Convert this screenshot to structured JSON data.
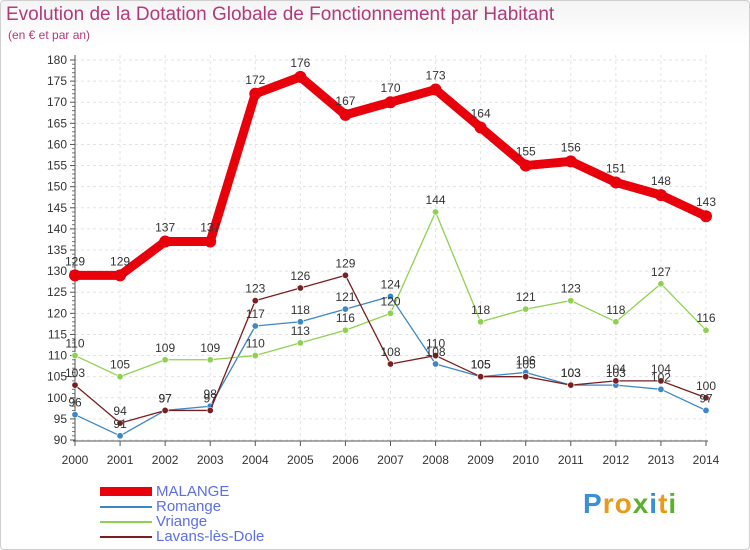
{
  "chart_data": {
    "type": "line",
    "title": "Evolution de la Dotation Globale de Fonctionnement par Habitant",
    "subtitle": "(en € et par an)",
    "xlabel": "",
    "ylabel": "",
    "ylim": [
      90,
      180
    ],
    "y_ticks": [
      90,
      95,
      100,
      105,
      110,
      115,
      120,
      125,
      130,
      135,
      140,
      145,
      150,
      155,
      160,
      165,
      170,
      175,
      180
    ],
    "x": [
      "2000",
      "2001",
      "2002",
      "2003",
      "2004",
      "2005",
      "2006",
      "2007",
      "2008",
      "2009",
      "2010",
      "2011",
      "2012",
      "2013",
      "2014"
    ],
    "series": [
      {
        "name": "Romange",
        "color": "#3d87c6",
        "values": [
          96,
          91,
          97,
          98,
          117,
          118,
          121,
          124,
          108,
          105,
          106,
          103,
          103,
          102,
          97
        ],
        "labels": [
          "96",
          "91",
          "97",
          "98",
          "117",
          "118",
          "121",
          "124",
          "108",
          "105",
          "106",
          "103",
          "103",
          "102",
          "97"
        ]
      },
      {
        "name": "Vriange",
        "color": "#8fd14f",
        "values": [
          110,
          105,
          109,
          109,
          110,
          113,
          116,
          120,
          144,
          118,
          121,
          123,
          118,
          127,
          116
        ],
        "labels": [
          "110",
          "105",
          "109",
          "109",
          "110",
          "113",
          "116",
          "120",
          "144",
          "118",
          "121",
          "123",
          "118",
          "127",
          "116"
        ]
      },
      {
        "name": "Lavans-lès-Dole",
        "color": "#7a1f1f",
        "values": [
          103,
          94,
          97,
          97,
          123,
          126,
          129,
          108,
          110,
          105,
          105,
          103,
          104,
          104,
          100
        ],
        "labels": [
          "103",
          "94",
          "97",
          "97",
          "123",
          "126",
          "129",
          "108",
          "110",
          "105",
          "105",
          "103",
          "104",
          "104",
          "100"
        ]
      },
      {
        "name": "MALANGE",
        "color": "#e8000b",
        "values": [
          129,
          129,
          137,
          137,
          172,
          176,
          167,
          170,
          173,
          164,
          155,
          156,
          151,
          148,
          143
        ],
        "labels": [
          "129",
          "129",
          "137",
          "137",
          "172",
          "176",
          "167",
          "170",
          "173",
          "164",
          "155",
          "156",
          "151",
          "148",
          "143"
        ]
      }
    ]
  },
  "legend": {
    "items": [
      {
        "label": "MALANGE",
        "color": "#e8000b",
        "text_color": "#5b6ee8"
      },
      {
        "label": "Romange",
        "color": "#3d87c6",
        "text_color": "#5b6ee8"
      },
      {
        "label": "Vriange",
        "color": "#8fd14f",
        "text_color": "#5b6ee8"
      },
      {
        "label": "Lavans-lès-Dole",
        "color": "#7a1f1f",
        "text_color": "#5b6ee8"
      }
    ]
  },
  "logo": {
    "letters": [
      "P",
      "r",
      "o",
      "x",
      "i",
      "t",
      "i"
    ],
    "colors": [
      "#3a8fd9",
      "#e89a1d",
      "#e89a1d",
      "#5bb030",
      "#3a8fd9",
      "#e89a1d",
      "#5bb030"
    ]
  }
}
